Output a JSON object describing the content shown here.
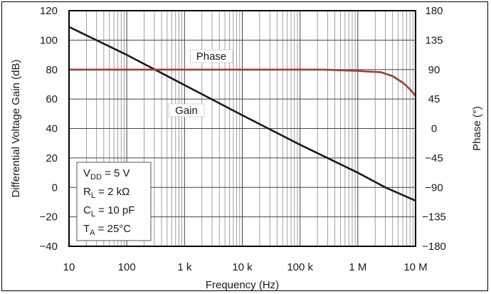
{
  "chart_data": {
    "type": "line",
    "xlabel": "Frequency (Hz)",
    "ylabel_left": "Differential Voltage Gain (dB)",
    "ylabel_right": "Phase (°)",
    "x_scale": "log",
    "xlim": [
      10,
      10000000
    ],
    "ylim_left": [
      -40,
      120
    ],
    "ylim_right": [
      -180,
      180
    ],
    "x_ticks": [
      10,
      100,
      1000,
      10000,
      100000,
      1000000,
      10000000
    ],
    "x_tick_labels": [
      "10",
      "100",
      "1 k",
      "10 k",
      "100 k",
      "1 M",
      "10 M"
    ],
    "y_left_ticks": [
      -40,
      -20,
      0,
      20,
      40,
      60,
      80,
      100,
      120
    ],
    "y_left_tick_labels": [
      "−40",
      "−20",
      "0",
      "20",
      "40",
      "60",
      "80",
      "100",
      "120"
    ],
    "y_right_ticks": [
      -180,
      -135,
      -90,
      -45,
      0,
      45,
      90,
      135,
      180
    ],
    "y_right_tick_labels": [
      "−180",
      "−135",
      "−90",
      "−45",
      "0",
      "45",
      "90",
      "135",
      "180"
    ],
    "grid": true,
    "series": [
      {
        "name": "Gain",
        "axis": "left",
        "color": "#1a1a1a",
        "x": [
          10,
          100,
          1000,
          10000,
          100000,
          1000000,
          3000000,
          10000000
        ],
        "y": [
          109,
          90,
          69.5,
          49,
          29,
          10,
          0,
          -9
        ]
      },
      {
        "name": "Phase",
        "axis": "right",
        "color": "#a33a3a",
        "x": [
          10,
          100,
          1000,
          10000,
          100000,
          250000,
          1000000,
          2500000,
          4000000,
          6000000,
          8000000,
          10000000
        ],
        "y": [
          90,
          90,
          90,
          90,
          90,
          90,
          88,
          86,
          80,
          70,
          60,
          50
        ]
      }
    ],
    "conditions": [
      {
        "main": "V",
        "sub": "DD",
        "rest": " = 5 V"
      },
      {
        "main": "R",
        "sub": "L",
        "rest": " = 2 kΩ"
      },
      {
        "main": "C",
        "sub": "L",
        "rest": " = 10 pF"
      },
      {
        "main": "T",
        "sub": "A",
        "rest": " = 25°C"
      }
    ]
  }
}
